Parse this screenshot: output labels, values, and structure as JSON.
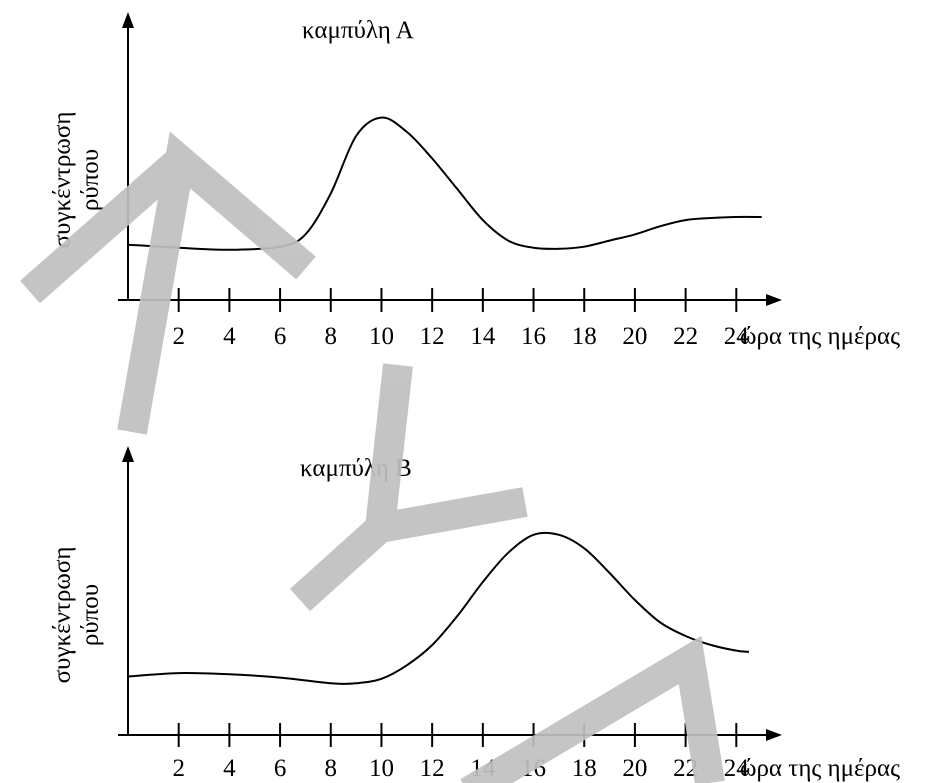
{
  "watermark": {
    "text": "ΛΥΚ",
    "color": "#c0c0c0"
  },
  "charts": [
    {
      "title": "καμπύλη Α",
      "ylabel_line1": "συγκέντρωση",
      "ylabel_line2": "ρύπου",
      "xlabel": "ώρα της ημέρας"
    },
    {
      "title": "καμπύλη Β",
      "ylabel_line1": "συγκέντρωση",
      "ylabel_line2": "ρύπου",
      "xlabel": "ώρα της ημέρας"
    }
  ],
  "chart_data": [
    {
      "type": "line",
      "title": "καμπύλη Α",
      "xlabel": "ώρα της ημέρας",
      "ylabel": "συγκέντρωση ρύπου",
      "xlim": [
        0,
        26
      ],
      "ylim": [
        0,
        10
      ],
      "xticks": [
        2,
        4,
        6,
        8,
        10,
        12,
        14,
        16,
        18,
        20,
        22,
        24
      ],
      "series": [
        {
          "x": [
            0,
            2,
            4,
            6,
            7,
            8,
            9,
            10,
            11,
            12,
            13,
            14,
            15,
            16,
            17,
            18,
            19,
            20,
            21,
            22,
            23,
            24,
            25
          ],
          "y": [
            2.7,
            2.55,
            2.45,
            2.6,
            3.2,
            5.2,
            8.0,
            8.9,
            8.2,
            6.9,
            5.4,
            3.9,
            2.9,
            2.55,
            2.5,
            2.6,
            2.9,
            3.2,
            3.6,
            3.9,
            4.0,
            4.05,
            4.05
          ]
        }
      ]
    },
    {
      "type": "line",
      "title": "καμπύλη Β",
      "xlabel": "ώρα της ημέρας",
      "ylabel": "συγκέντρωση ρύπου",
      "xlim": [
        0,
        26
      ],
      "ylim": [
        0,
        10
      ],
      "xticks": [
        2,
        4,
        6,
        8,
        10,
        12,
        14,
        16,
        18,
        20,
        22,
        24
      ],
      "series": [
        {
          "x": [
            0,
            2,
            4,
            6,
            8,
            9,
            10,
            11,
            12,
            13,
            14,
            15,
            16,
            17,
            18,
            19,
            20,
            21,
            22,
            23,
            24,
            24.5
          ],
          "y": [
            2.6,
            2.75,
            2.7,
            2.55,
            2.3,
            2.3,
            2.5,
            3.1,
            4.0,
            5.3,
            6.8,
            8.1,
            8.9,
            8.9,
            8.3,
            7.2,
            6.0,
            5.0,
            4.4,
            4.0,
            3.75,
            3.7
          ]
        }
      ]
    }
  ]
}
